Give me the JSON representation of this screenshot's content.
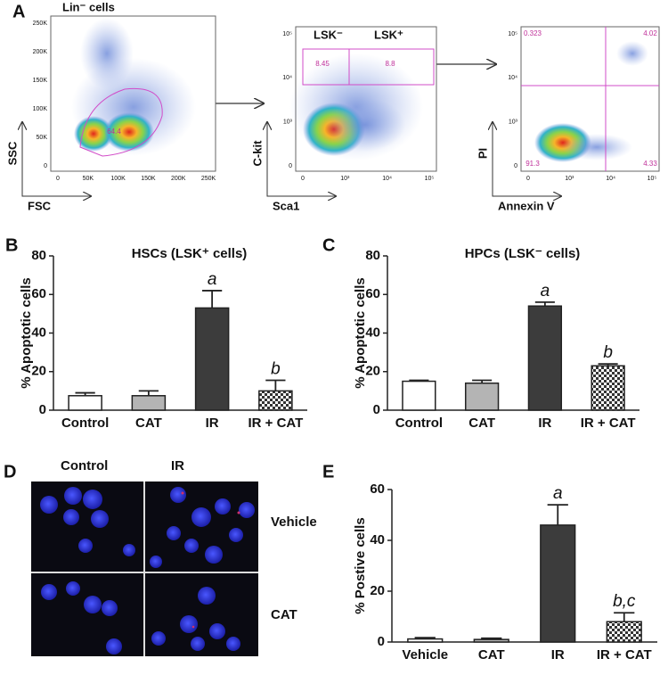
{
  "panel_labels": [
    "A",
    "B",
    "C",
    "D",
    "E"
  ],
  "flow": [
    {
      "title": "Lin⁻ cells",
      "y_label": "SSC",
      "x_label": "FSC",
      "gates": [
        "64.4"
      ],
      "yticks": [
        "250K",
        "200K",
        "150K",
        "100K",
        "50K",
        "0"
      ],
      "xticks": [
        "0",
        "50K",
        "100K",
        "150K",
        "200K",
        "250K"
      ]
    },
    {
      "y_label": "C-kit",
      "x_label": "Sca1",
      "gate_names": [
        "LSK⁻",
        "LSK⁺"
      ],
      "gates": [
        "8.45",
        "8.8"
      ],
      "yticks": [
        "10⁵",
        "10⁴",
        "10³",
        "0"
      ],
      "xticks": [
        "0",
        "10³",
        "10⁴",
        "10⁵"
      ]
    },
    {
      "y_label": "PI",
      "x_label": "Annexin V",
      "gates": [
        "0.323",
        "4.02",
        "91.3",
        "4.33"
      ],
      "yticks": [
        "10⁵",
        "10⁴",
        "10³",
        "0"
      ],
      "xticks": [
        "0",
        "10³",
        "10⁴",
        "10⁵"
      ]
    }
  ],
  "microscopy": {
    "columns": [
      "Control",
      "IR"
    ],
    "rows": [
      "Vehicle",
      "CAT"
    ]
  },
  "chart_data": [
    {
      "type": "bar",
      "title": "HSCs (LSK⁺ cells)",
      "y_label": "% Apoptotic cells",
      "categories": [
        "Control",
        "CAT",
        "IR",
        "IR + CAT"
      ],
      "values": [
        7.5,
        7.5,
        53,
        10
      ],
      "errors": [
        1.5,
        2.5,
        9,
        5.5
      ],
      "annotations": [
        null,
        null,
        "a",
        "b"
      ],
      "fills": [
        "#ffffff",
        "#b4b4b4",
        "#3c3c3c",
        "checker"
      ],
      "ylim": [
        0,
        80
      ],
      "yticks": [
        0,
        20,
        40,
        60,
        80
      ]
    },
    {
      "type": "bar",
      "title": "HPCs (LSK⁻ cells)",
      "y_label": "% Apoptotic cells",
      "categories": [
        "Control",
        "CAT",
        "IR",
        "IR + CAT"
      ],
      "values": [
        15,
        14,
        54,
        23
      ],
      "errors": [
        0.5,
        1.5,
        2,
        1
      ],
      "annotations": [
        null,
        null,
        "a",
        "b"
      ],
      "fills": [
        "#ffffff",
        "#b4b4b4",
        "#3c3c3c",
        "checker"
      ],
      "ylim": [
        0,
        80
      ],
      "yticks": [
        0,
        20,
        40,
        60,
        80
      ]
    },
    {
      "type": "bar",
      "y_label": "% Postive cells",
      "categories": [
        "Vehicle",
        "CAT",
        "IR",
        "IR + CAT"
      ],
      "values": [
        1.2,
        1,
        46,
        8
      ],
      "errors": [
        0.5,
        0.5,
        8,
        3.5
      ],
      "annotations": [
        null,
        null,
        "a",
        "b,c"
      ],
      "fills": [
        "#ffffff",
        "#b4b4b4",
        "#3c3c3c",
        "checker"
      ],
      "ylim": [
        0,
        60
      ],
      "yticks": [
        0,
        20,
        40,
        60
      ]
    }
  ]
}
